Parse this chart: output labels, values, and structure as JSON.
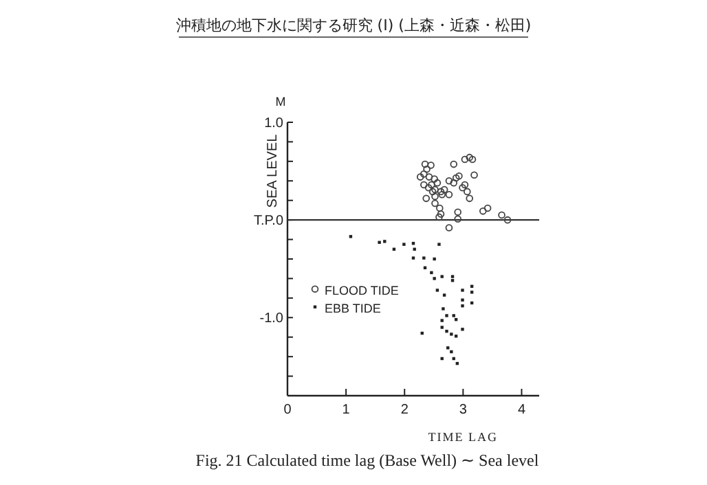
{
  "chart_data": {
    "type": "scatter",
    "title": "Fig. 21  Calculated time lag (Base Well) ∼ Sea level",
    "xlabel": "TIME LAG",
    "ylabel": "SEA LEVEL",
    "annotations": [
      "M",
      "沖積地の地下水に関する研究 (I)  (上森・近森・松田)"
    ],
    "xlim": [
      0,
      4.3
    ],
    "xticks": [
      0,
      1,
      2,
      3,
      4
    ],
    "ylim": [
      -1.8,
      1.0
    ],
    "yticks": [
      {
        "value": 1,
        "label": "1.0"
      },
      {
        "value": 0.8,
        "label": null
      },
      {
        "value": 0.6,
        "label": null
      },
      {
        "value": 0.4,
        "label": null
      },
      {
        "value": 0.2,
        "label": null
      },
      {
        "value": 0,
        "label": "T.P.0"
      },
      {
        "value": -0.2,
        "label": null
      },
      {
        "value": -0.4,
        "label": null
      },
      {
        "value": -0.6,
        "label": null
      },
      {
        "value": -0.8,
        "label": null
      },
      {
        "value": -1,
        "label": "-1.0"
      },
      {
        "value": -1.2,
        "label": null
      },
      {
        "value": -1.4,
        "label": null
      },
      {
        "value": -1.6,
        "label": null
      }
    ],
    "grid": false,
    "legend": "left",
    "ref_lines": [
      {
        "axis": "y",
        "value": 0,
        "color": "#333333"
      }
    ],
    "series": [
      {
        "name": "FLOOD TIDE",
        "color": "#444444",
        "marker": "circle",
        "x": [
          2.35,
          2.38,
          2.45,
          2.33,
          2.27,
          2.42,
          2.51,
          2.56,
          2.46,
          2.33,
          2.41,
          2.52,
          2.62,
          2.68,
          2.76,
          2.84,
          2.88,
          2.93,
          2.84,
          3.03,
          3.11,
          3.16,
          3.19,
          3.03,
          3.07,
          3.11,
          2.99,
          2.76,
          2.64,
          2.52,
          2.48,
          2.37,
          2.52,
          2.6,
          2.62,
          2.59,
          2.91,
          2.91,
          3.34,
          3.42,
          3.66,
          3.76,
          2.76
        ],
        "values": [
          0.57,
          0.52,
          0.56,
          0.47,
          0.44,
          0.44,
          0.42,
          0.38,
          0.36,
          0.36,
          0.33,
          0.31,
          0.29,
          0.31,
          0.4,
          0.38,
          0.43,
          0.45,
          0.57,
          0.62,
          0.64,
          0.62,
          0.46,
          0.36,
          0.29,
          0.22,
          0.33,
          0.26,
          0.26,
          0.24,
          0.29,
          0.22,
          0.17,
          0.12,
          0.06,
          0.03,
          0.08,
          0.01,
          0.09,
          0.12,
          0.05,
          0.0,
          -0.08
        ]
      },
      {
        "name": "EBB TIDE",
        "color": "#222222",
        "marker": "square",
        "x": [
          1.08,
          1.57,
          1.66,
          1.82,
          1.99,
          2.15,
          2.17,
          2.15,
          2.33,
          2.51,
          2.59,
          2.35,
          2.46,
          2.51,
          2.64,
          2.82,
          2.82,
          2.56,
          2.68,
          2.99,
          3.15,
          3.15,
          2.99,
          2.99,
          3.15,
          2.66,
          2.72,
          2.84,
          2.88,
          2.64,
          2.64,
          2.72,
          2.8,
          2.88,
          2.99,
          2.3,
          2.74,
          2.8,
          2.84,
          2.64,
          2.9
        ],
        "values": [
          -0.17,
          -0.23,
          -0.22,
          -0.3,
          -0.25,
          -0.24,
          -0.3,
          -0.39,
          -0.39,
          -0.4,
          -0.25,
          -0.49,
          -0.54,
          -0.6,
          -0.58,
          -0.58,
          -0.62,
          -0.72,
          -0.77,
          -0.72,
          -0.68,
          -0.74,
          -0.82,
          -0.88,
          -0.85,
          -0.91,
          -0.98,
          -0.98,
          -1.02,
          -1.03,
          -1.1,
          -1.14,
          -1.17,
          -1.19,
          -1.12,
          -1.16,
          -1.31,
          -1.35,
          -1.42,
          -1.42,
          -1.47
        ]
      }
    ]
  }
}
